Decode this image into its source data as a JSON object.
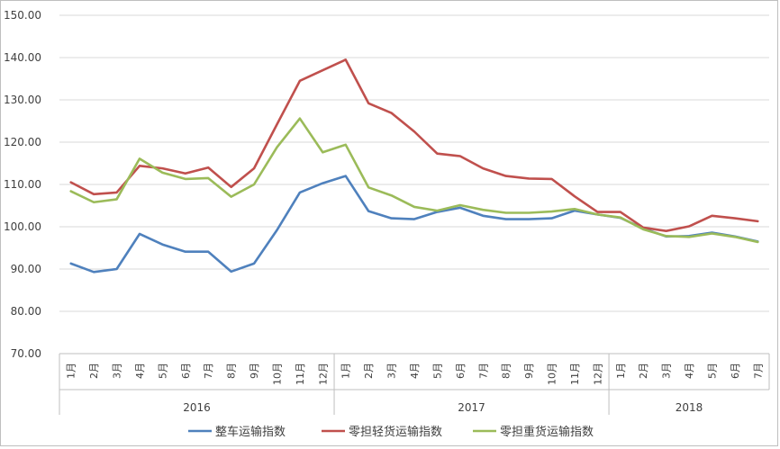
{
  "chart_data": {
    "type": "line",
    "title": "",
    "xlabel": "",
    "ylabel": "",
    "ylim": [
      70,
      150
    ],
    "yticks": [
      "70.00",
      "80.00",
      "90.00",
      "100.00",
      "110.00",
      "120.00",
      "130.00",
      "140.00",
      "150.00"
    ],
    "grid": "horizontal",
    "legend_position": "bottom",
    "categories": [
      "1月",
      "2月",
      "3月",
      "4月",
      "5月",
      "6月",
      "7月",
      "8月",
      "9月",
      "10月",
      "11月",
      "12月",
      "1月",
      "2月",
      "3月",
      "4月",
      "5月",
      "6月",
      "7月",
      "8月",
      "9月",
      "10月",
      "11月",
      "12月",
      "1月",
      "2月",
      "3月",
      "4月",
      "5月",
      "6月",
      "7月"
    ],
    "year_groups": [
      {
        "label": "2016",
        "count": 12
      },
      {
        "label": "2017",
        "count": 12
      },
      {
        "label": "2018",
        "count": 7
      }
    ],
    "series": [
      {
        "name": "整车运输指数",
        "color": "#4f81bd",
        "values": [
          91.3,
          89.3,
          90.0,
          98.3,
          95.8,
          94.1,
          94.1,
          89.4,
          91.3,
          99.2,
          108.1,
          110.3,
          112.0,
          103.7,
          102.0,
          101.8,
          103.5,
          104.5,
          102.6,
          101.8,
          101.8,
          102.0,
          103.8,
          102.9,
          102.1,
          99.6,
          97.7,
          97.8,
          98.6,
          97.7,
          96.5
        ]
      },
      {
        "name": "零担轻货运输指数",
        "color": "#c0504d",
        "values": [
          110.5,
          107.7,
          108.1,
          114.4,
          113.8,
          112.6,
          114.0,
          109.4,
          113.8,
          124.2,
          134.5,
          137.0,
          139.5,
          129.2,
          126.9,
          122.5,
          117.3,
          116.7,
          113.8,
          112.0,
          111.4,
          111.3,
          107.2,
          103.5,
          103.5,
          99.8,
          99.0,
          100.1,
          102.6,
          102.0,
          101.3
        ]
      },
      {
        "name": "零担重货运输指数",
        "color": "#9bbb59",
        "values": [
          108.4,
          105.8,
          106.5,
          116.1,
          112.8,
          111.3,
          111.5,
          107.1,
          110.0,
          118.8,
          125.6,
          117.6,
          119.4,
          109.3,
          107.4,
          104.7,
          103.8,
          105.1,
          104.0,
          103.3,
          103.3,
          103.6,
          104.2,
          102.9,
          102.2,
          99.4,
          97.8,
          97.6,
          98.4,
          97.6,
          96.4
        ]
      }
    ]
  }
}
